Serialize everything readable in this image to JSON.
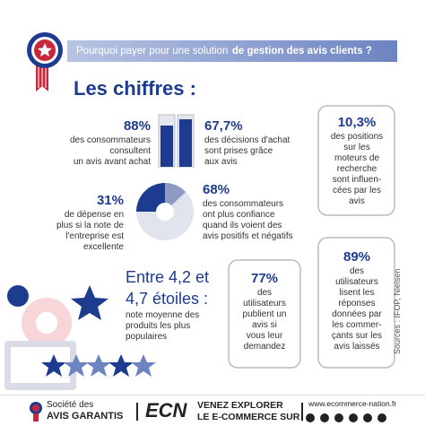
{
  "header": {
    "title_regular": "Pourquoi payer pour une solution",
    "title_bold": "de gestion des avis clients ?"
  },
  "section_title": "Les chiffres :",
  "stats": [
    {
      "value": "88%",
      "lines": [
        "des consommateurs",
        "consultent",
        "un avis avant achat"
      ]
    },
    {
      "value": "67,7%",
      "lines": [
        "des décisions d'achat",
        "sont prises grâce",
        "aux avis"
      ]
    },
    {
      "value": "10,3%",
      "lines": [
        "des positions",
        "sur les",
        "moteurs de",
        "recherche",
        "sont influen-",
        "cées par les",
        "avis"
      ]
    },
    {
      "value": "31%",
      "lines": [
        "de dépense en",
        "plus si la note de",
        "l'entreprise est",
        "excellente"
      ]
    },
    {
      "value": "68%",
      "lines": [
        "des consommateurs",
        "ont plus confiance",
        "quand ils voient des",
        "avis positifs et négatifs"
      ]
    },
    {
      "value_lines": [
        "Entre 4,2 et",
        "4,7 étoiles :"
      ],
      "lines": [
        "note moyenne des",
        "produits les plus",
        "populaires"
      ]
    },
    {
      "value": "77%",
      "lines": [
        "des",
        "utilisateurs",
        "publient un",
        "avis si",
        "vous leur",
        "demandez"
      ]
    },
    {
      "value": "89%",
      "lines": [
        "des",
        "utilisateurs",
        "lisent les",
        "réponses",
        "données par",
        "les commer-",
        "çants sur les",
        "avis laissés"
      ]
    }
  ],
  "sources": "Sources : IFOP, Nielsen",
  "footer": {
    "brand_line1": "Société des",
    "brand_line2": "AVIS GARANTIS",
    "logo": "ECN",
    "cta_line1": "VENEZ EXPLORER",
    "cta_line2": "LE E-COMMERCE SUR",
    "url": "www.ecommerce-nation.fr"
  }
}
